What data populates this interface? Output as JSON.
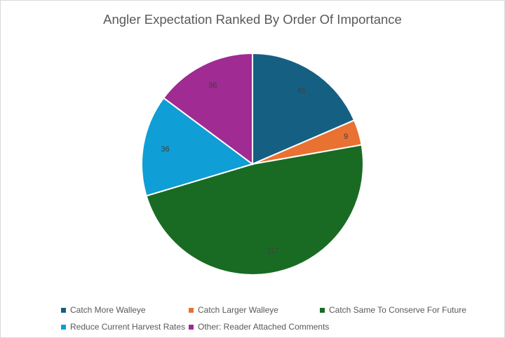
{
  "chart_data": {
    "type": "pie",
    "title": "Angler Expectation Ranked By Order Of Importance",
    "categories": [
      "Catch More Walleye",
      "Catch Larger Walleye",
      "Catch Same To Conserve For Future",
      "Reduce Current Harvest Rates",
      "Other: Reader Attached Comments"
    ],
    "values": [
      45,
      9,
      117,
      36,
      36
    ],
    "data_labels": [
      "45",
      "9",
      "117",
      "36",
      "36"
    ],
    "colors": [
      "#156082",
      "#E97132",
      "#196B24",
      "#0F9ED5",
      "#A02B93"
    ],
    "legend_position": "bottom"
  }
}
